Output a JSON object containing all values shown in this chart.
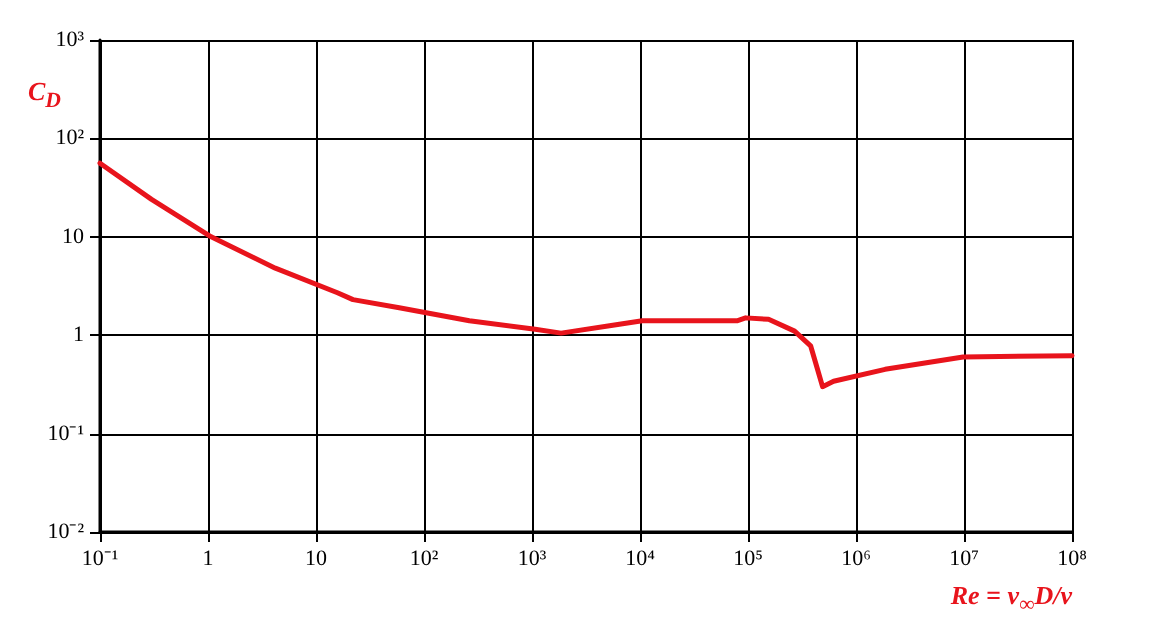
{
  "chart_data": {
    "type": "line",
    "xlabel": "Re = v$_{∞}$D/ν",
    "ylabel": "C$_{D}$",
    "log": "xy",
    "grid": true,
    "marker": "none",
    "line_style": "solid",
    "xlim": [
      0.1,
      100000000
    ],
    "ylim": [
      0.01,
      1000
    ],
    "xticks": [
      {
        "value": 0.1,
        "label": "10⁻¹"
      },
      1,
      10,
      {
        "value": 100,
        "label": "10²"
      },
      {
        "value": 1000,
        "label": "10³"
      },
      {
        "value": 10000,
        "label": "10⁴"
      },
      {
        "value": 100000,
        "label": "10⁵"
      },
      {
        "value": 1000000,
        "label": "10⁶"
      },
      {
        "value": 10000000,
        "label": "10⁷"
      },
      {
        "value": 100000000,
        "label": "10⁸"
      }
    ],
    "yticks": [
      {
        "value": 0.01,
        "label": "10⁻²"
      },
      {
        "value": 0.1,
        "label": "10⁻¹"
      },
      1,
      10,
      {
        "value": 100,
        "label": "10²"
      },
      {
        "value": 1000,
        "label": "10³"
      }
    ],
    "x": [
      0.1,
      0.3,
      1.07,
      4.2,
      15.8,
      22,
      59,
      263,
      1070,
      1860,
      5600,
      10500,
      79000,
      95000,
      155000,
      270000,
      380000,
      440000,
      490000,
      620000,
      1860000,
      9800000,
      100000000
    ],
    "series": [
      {
        "color": "#e8141c",
        "values": [
          56,
          24,
          10,
          4.8,
          2.7,
          2.3,
          1.9,
          1.4,
          1.15,
          1.05,
          1.26,
          1.4,
          1.4,
          1.5,
          1.45,
          1.1,
          0.78,
          0.45,
          0.3,
          0.34,
          0.45,
          0.6,
          0.62
        ]
      }
    ]
  }
}
